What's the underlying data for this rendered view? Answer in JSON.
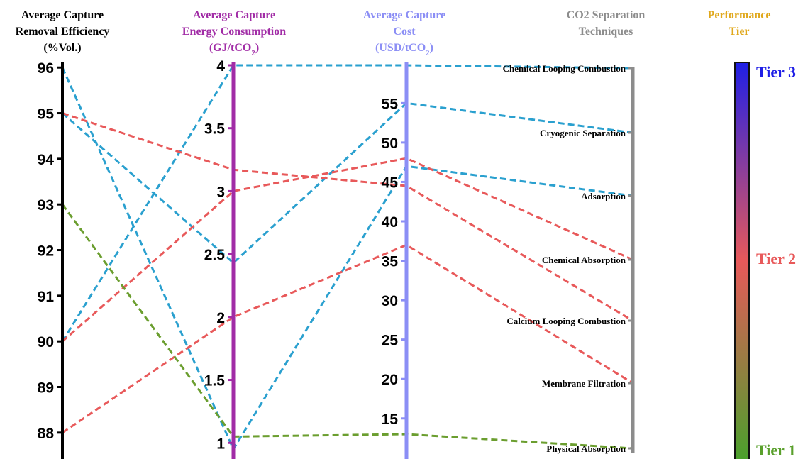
{
  "chart_data": {
    "type": "parallel-coordinates",
    "axes": [
      {
        "key": "removal",
        "title_lines": [
          "Average Capture",
          "Removal Efficiency",
          "(%Vol.)"
        ],
        "color": "#000000",
        "range": [
          87.5,
          96.05
        ],
        "ticks": [
          88,
          89,
          90,
          91,
          92,
          93,
          94,
          95,
          96
        ],
        "tick_labels": [
          "88",
          "89",
          "90",
          "91",
          "92",
          "93",
          "94",
          "95",
          "96"
        ]
      },
      {
        "key": "energy",
        "title_lines": [
          "Average Capture",
          "Energy Consumption",
          "(GJ/tCO2)"
        ],
        "color": "#a12ca6",
        "range": [
          0.9,
          4.0
        ],
        "ticks": [
          1,
          1.5,
          2,
          2.5,
          3,
          3.5,
          4
        ],
        "tick_labels": [
          "1",
          "1.5",
          "2",
          "2.5",
          "3",
          "3.5",
          "4"
        ]
      },
      {
        "key": "cost",
        "title_lines": [
          "Average Capture",
          "Cost",
          "(USD/tCO2)"
        ],
        "color": "#8b8ef5",
        "range": [
          10.3,
          59.8
        ],
        "ticks": [
          15,
          20,
          25,
          30,
          35,
          40,
          45,
          50,
          55
        ],
        "tick_labels": [
          "15",
          "20",
          "25",
          "30",
          "35",
          "40",
          "45",
          "50",
          "55"
        ]
      },
      {
        "key": "technique",
        "title_lines": [
          "CO2 Separation",
          "Techniques"
        ],
        "color": "#8c8c8c",
        "categories": [
          "Chemical Looping Combustion",
          "Cryogenic Separation",
          "Adsorption",
          "Chemical Absorption",
          "Calcium Looping Combustion",
          "Membrane Filtration",
          "Physical Absorption"
        ]
      },
      {
        "key": "tier",
        "title_lines": [
          "Performance",
          "Tier"
        ],
        "color": "#e0a81c"
      }
    ],
    "tier_colors": {
      "Tier 1": "#5aa02c",
      "Tier 2": "#e8595a",
      "Tier 3": "#1f1fe6"
    },
    "colorbar_labels": [
      {
        "label": "Tier 3",
        "color": "#1f1fe6"
      },
      {
        "label": "Tier 2",
        "color": "#e8595a"
      },
      {
        "label": "Tier 1",
        "color": "#5aa02c"
      }
    ],
    "line_colors": {
      "Tier 1": "#6b9e2f",
      "Tier 2": "#e8595a",
      "Tier 3": "#2aa0cf"
    },
    "series": [
      {
        "technique": "Chemical Looping Combustion",
        "tier": "Tier 3",
        "removal": 90,
        "energy": 4.0,
        "cost": 59.8
      },
      {
        "technique": "Cryogenic Separation",
        "tier": "Tier 3",
        "removal": 95,
        "energy": 2.43,
        "cost": 55
      },
      {
        "technique": "Adsorption",
        "tier": "Tier 3",
        "removal": 96,
        "energy": 0.95,
        "cost": 47
      },
      {
        "technique": "Chemical Absorption",
        "tier": "Tier 2",
        "removal": 90,
        "energy": 3.0,
        "cost": 48
      },
      {
        "technique": "Calcium Looping Combustion",
        "tier": "Tier 2",
        "removal": 95,
        "energy": 3.17,
        "cost": 44.5
      },
      {
        "technique": "Membrane Filtration",
        "tier": "Tier 2",
        "removal": 88,
        "energy": 2.0,
        "cost": 37
      },
      {
        "technique": "Physical Absorption",
        "tier": "Tier 1",
        "removal": 93,
        "energy": 1.05,
        "cost": 13
      }
    ]
  }
}
